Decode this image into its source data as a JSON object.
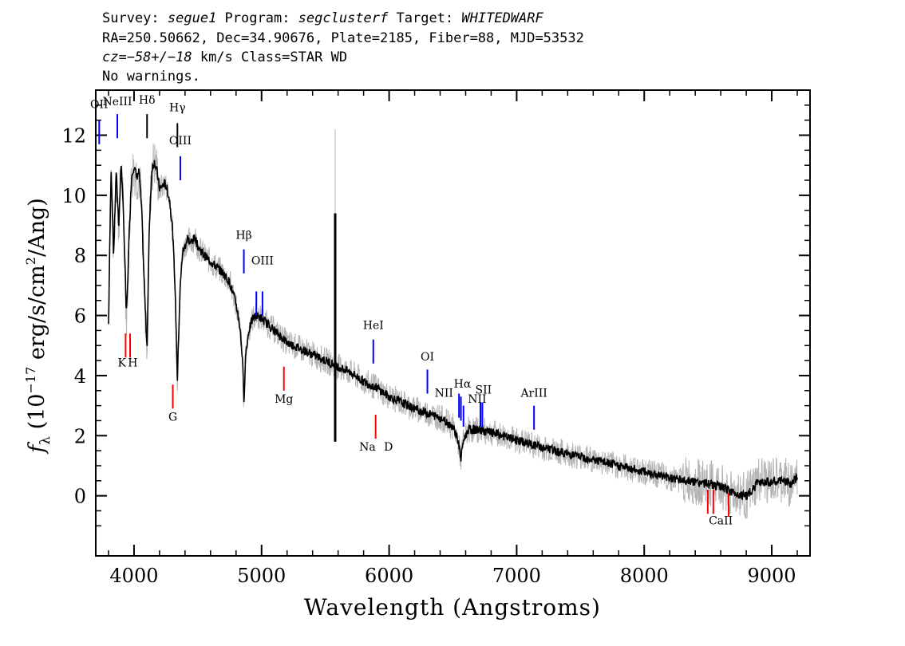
{
  "header": {
    "line1": {
      "survey_label": "Survey: ",
      "survey": "segue1",
      "program_label": " Program: ",
      "program": "segclusterf",
      "target_label": " Target: ",
      "target": "WHITEDWARF"
    },
    "line2": "RA=250.50662, Dec=34.90676, Plate=2185, Fiber=88, MJD=53532",
    "line3": {
      "cz": "cz=−58+/−18",
      "rest": " km/s Class=STAR WD"
    },
    "line4": "No warnings."
  },
  "chart_data": {
    "type": "line",
    "xlabel": "Wavelength (Angstroms)",
    "ylabel": "fλ (10⁻¹⁷ erg/s/cm²/Ang)",
    "xlim": [
      3700,
      9300
    ],
    "ylim": [
      -2,
      13.5
    ],
    "xticks": [
      4000,
      5000,
      6000,
      7000,
      8000,
      9000
    ],
    "yticks": [
      0,
      2,
      4,
      6,
      8,
      10,
      12
    ],
    "colors": {
      "flux": "#000000",
      "noise": "#b4b4b4",
      "emission": "#0000ff",
      "absorption": "#ff0000"
    },
    "series": [
      {
        "x": [
          3800,
          3820,
          3840,
          3860,
          3880,
          3900,
          3920,
          3940,
          3950,
          3960,
          3980,
          4000,
          4020,
          4040,
          4060,
          4080,
          4102,
          4120,
          4140,
          4160,
          4180,
          4200,
          4220,
          4240,
          4260,
          4280,
          4300,
          4320,
          4340,
          4360,
          4380,
          4400,
          4420,
          4440,
          4460,
          4480,
          4500,
          4550,
          4600,
          4650,
          4700,
          4750,
          4800,
          4830,
          4850,
          4861,
          4875,
          4900,
          4930,
          4960,
          5000,
          5050,
          5100,
          5200,
          5300,
          5400,
          5500,
          5600,
          5700,
          5800,
          5900,
          6000,
          6100,
          6200,
          6300,
          6400,
          6500,
          6530,
          6550,
          6563,
          6580,
          6620,
          6700,
          6800,
          7000,
          7200,
          7400,
          7600,
          7800,
          8000,
          8200,
          8400,
          8500,
          8600,
          8700,
          8800,
          8850,
          8900,
          9000,
          9100,
          9150,
          9200
        ],
        "y": [
          5.7,
          11.0,
          8.0,
          10.8,
          9.0,
          11.1,
          9.0,
          6.0,
          7.0,
          8.5,
          10.6,
          11.0,
          10.6,
          10.8,
          9.5,
          7.0,
          4.9,
          9.0,
          10.9,
          11.1,
          10.8,
          10.2,
          10.3,
          10.4,
          10.2,
          9.8,
          9.0,
          7.2,
          3.9,
          6.8,
          8.1,
          8.3,
          8.6,
          8.4,
          8.5,
          8.6,
          8.3,
          8.0,
          7.8,
          7.6,
          7.4,
          7.1,
          6.4,
          5.6,
          4.6,
          3.1,
          4.7,
          5.5,
          5.9,
          6.0,
          5.9,
          5.7,
          5.5,
          5.1,
          4.9,
          4.7,
          4.5,
          4.3,
          4.1,
          3.8,
          3.6,
          3.3,
          3.1,
          2.9,
          2.75,
          2.6,
          2.3,
          2.0,
          1.6,
          1.2,
          1.8,
          2.2,
          2.2,
          2.1,
          1.85,
          1.6,
          1.4,
          1.2,
          1.0,
          0.8,
          0.6,
          0.45,
          0.4,
          0.3,
          0.1,
          0.0,
          0.2,
          0.5,
          0.45,
          0.5,
          0.4,
          0.6
        ]
      }
    ],
    "spike": {
      "x": 5577,
      "y0": 1.8,
      "y1": 9.4
    },
    "emission_lines": [
      {
        "label": "OII",
        "x": 3727,
        "y0": 11.7,
        "y1": 12.5,
        "ly": 12.9
      },
      {
        "label": "NeIII",
        "x": 3869,
        "y0": 11.9,
        "y1": 12.7,
        "ly": 13.0
      },
      {
        "label": "Hδ",
        "x": 4102,
        "y0": 11.9,
        "y1": 12.7,
        "ly": 13.05,
        "color": "#000000"
      },
      {
        "label": "Hγ",
        "x": 4340,
        "y0": 11.6,
        "y1": 12.4,
        "ly": 12.8,
        "color": "#000000"
      },
      {
        "label": "OIII",
        "x": 4363,
        "y0": 10.5,
        "y1": 11.3,
        "ly": 11.7
      },
      {
        "label": "Hβ",
        "x": 4861,
        "y0": 7.4,
        "y1": 8.2,
        "ly": 8.55
      },
      {
        "label": "OIII",
        "x": 4959,
        "y0": 6.0,
        "y1": 6.8,
        "ly": 7.7,
        "lx": 5007
      },
      {
        "label": "",
        "x": 5007,
        "y0": 6.0,
        "y1": 6.8
      },
      {
        "label": "HeI",
        "x": 5876,
        "y0": 4.4,
        "y1": 5.2,
        "ly": 5.55
      },
      {
        "label": "OI",
        "x": 6300,
        "y0": 3.4,
        "y1": 4.2,
        "ly": 4.5
      },
      {
        "label": "NII",
        "x": 6548,
        "y0": 2.6,
        "y1": 3.4,
        "ly": 3.3,
        "lx": 6430
      },
      {
        "label": "Hα",
        "x": 6563,
        "y0": 2.5,
        "y1": 3.3,
        "ly": 3.6,
        "lx": 6575
      },
      {
        "label": "NII",
        "x": 6583,
        "y0": 2.3,
        "y1": 3.0,
        "ly": 3.1,
        "lx": 6690
      },
      {
        "label": "SII",
        "x": 6716,
        "y0": 2.3,
        "y1": 3.1,
        "ly": 3.4,
        "lx": 6740
      },
      {
        "label": "",
        "x": 6731,
        "y0": 2.3,
        "y1": 3.1
      },
      {
        "label": "ArIII",
        "x": 7136,
        "y0": 2.2,
        "y1": 3.0,
        "ly": 3.3
      }
    ],
    "absorption_lines": [
      {
        "label": "K",
        "x": 3934,
        "y0": 4.6,
        "y1": 5.4,
        "ly": 4.3,
        "lx": 3905
      },
      {
        "label": "H",
        "x": 3969,
        "y0": 4.6,
        "y1": 5.4,
        "ly": 4.3,
        "lx": 3990
      },
      {
        "label": "G",
        "x": 4304,
        "y0": 2.9,
        "y1": 3.7,
        "ly": 2.5
      },
      {
        "label": "Mg",
        "x": 5175,
        "y0": 3.5,
        "y1": 4.3,
        "ly": 3.1
      },
      {
        "label": "Na",
        "x": 5894,
        "y0": 1.9,
        "y1": 2.7,
        "ly": 1.5,
        "lx": 5830
      },
      {
        "label": "D",
        "x": 5894,
        "y0": 1.9,
        "y1": 2.7,
        "ly": 1.5,
        "lx": 5995,
        "noline": true
      },
      {
        "label": "CaII",
        "x": 8498,
        "y0": -0.6,
        "y1": 0.2,
        "ly": -0.95,
        "lx": 8600
      },
      {
        "label": "",
        "x": 8542,
        "y0": -0.6,
        "y1": 0.2
      },
      {
        "label": "",
        "x": 8662,
        "y0": -0.7,
        "y1": 0.1
      }
    ]
  }
}
